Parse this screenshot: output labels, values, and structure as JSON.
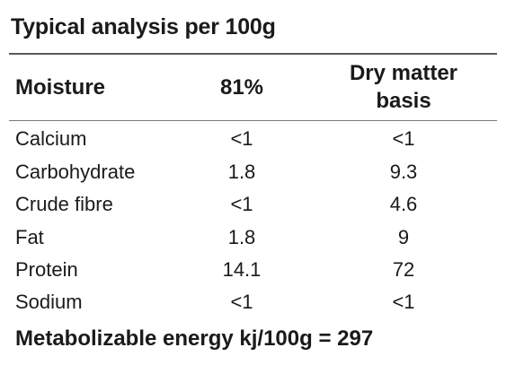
{
  "title": "Typical analysis per 100g",
  "header": {
    "label": "Moisture",
    "col1": "81%",
    "col2_line1": "Dry matter",
    "col2_line2": "basis"
  },
  "rows": [
    {
      "name": "Calcium",
      "v1": "<1",
      "v2": "<1"
    },
    {
      "name": "Carbohydrate",
      "v1": "1.8",
      "v2": "9.3"
    },
    {
      "name": "Crude fibre",
      "v1": "<1",
      "v2": "4.6"
    },
    {
      "name": "Fat",
      "v1": "1.8",
      "v2": "9"
    },
    {
      "name": "Protein",
      "v1": "14.1",
      "v2": "72"
    },
    {
      "name": "Sodium",
      "v1": "<1",
      "v2": "<1"
    }
  ],
  "footer": "Metabolizable energy kj/100g = 297"
}
